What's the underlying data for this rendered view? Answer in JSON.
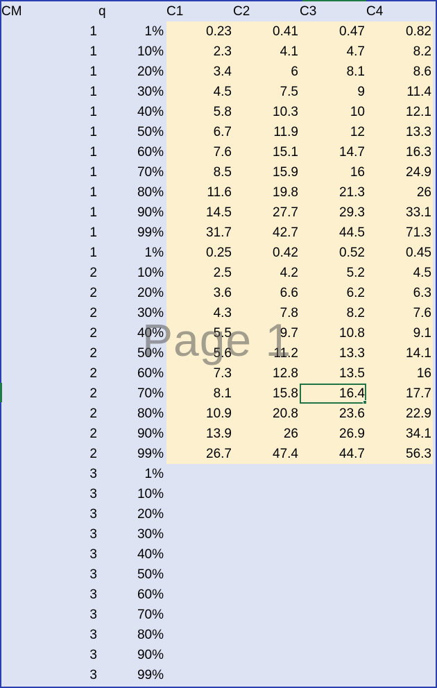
{
  "sheet": {
    "headers": [
      "CM",
      "q",
      "",
      "C1",
      "C2",
      "C3",
      "C4"
    ],
    "watermark": "Page 1",
    "rows": [
      {
        "cm": "1",
        "q": "1%",
        "c1": "0.23",
        "c2": "0.41",
        "c3": "0.47",
        "c4": "0.82",
        "red": true
      },
      {
        "cm": "1",
        "q": "10%",
        "c1": "2.3",
        "c2": "4.1",
        "c3": "4.7",
        "c4": "8.2"
      },
      {
        "cm": "1",
        "q": "20%",
        "c1": "3.4",
        "c2": "6",
        "c3": "8.1",
        "c4": "8.6"
      },
      {
        "cm": "1",
        "q": "30%",
        "c1": "4.5",
        "c2": "7.5",
        "c3": "9",
        "c4": "11.4"
      },
      {
        "cm": "1",
        "q": "40%",
        "c1": "5.8",
        "c2": "10.3",
        "c3": "10",
        "c4": "12.1"
      },
      {
        "cm": "1",
        "q": "50%",
        "c1": "6.7",
        "c2": "11.9",
        "c3": "12",
        "c4": "13.3"
      },
      {
        "cm": "1",
        "q": "60%",
        "c1": "7.6",
        "c2": "15.1",
        "c3": "14.7",
        "c4": "16.3"
      },
      {
        "cm": "1",
        "q": "70%",
        "c1": "8.5",
        "c2": "15.9",
        "c3": "16",
        "c4": "24.9"
      },
      {
        "cm": "1",
        "q": "80%",
        "c1": "11.6",
        "c2": "19.8",
        "c3": "21.3",
        "c4": "26"
      },
      {
        "cm": "1",
        "q": "90%",
        "c1": "14.5",
        "c2": "27.7",
        "c3": "29.3",
        "c4": "33.1"
      },
      {
        "cm": "1",
        "q": "99%",
        "c1": "31.7",
        "c2": "42.7",
        "c3": "44.5",
        "c4": "71.3"
      },
      {
        "cm": "1",
        "q": "1%",
        "c1": "0.25",
        "c2": "0.42",
        "c3": "0.52",
        "c4": "0.45",
        "red": true
      },
      {
        "cm": "2",
        "q": "10%",
        "c1": "2.5",
        "c2": "4.2",
        "c3": "5.2",
        "c4": "4.5"
      },
      {
        "cm": "2",
        "q": "20%",
        "c1": "3.6",
        "c2": "6.6",
        "c3": "6.2",
        "c4": "6.3"
      },
      {
        "cm": "2",
        "q": "30%",
        "c1": "4.3",
        "c2": "7.8",
        "c3": "8.2",
        "c4": "7.6"
      },
      {
        "cm": "2",
        "q": "40%",
        "c1": "5.5",
        "c2": "9.7",
        "c3": "10.8",
        "c4": "9.1"
      },
      {
        "cm": "2",
        "q": "50%",
        "c1": "5.6",
        "c2": "11.2",
        "c3": "13.3",
        "c4": "14.1"
      },
      {
        "cm": "2",
        "q": "60%",
        "c1": "7.3",
        "c2": "12.8",
        "c3": "13.5",
        "c4": "16"
      },
      {
        "cm": "2",
        "q": "70%",
        "c1": "8.1",
        "c2": "15.8",
        "c3": "16.4",
        "c4": "17.7",
        "selected": "c3"
      },
      {
        "cm": "2",
        "q": "80%",
        "c1": "10.9",
        "c2": "20.8",
        "c3": "23.6",
        "c4": "22.9"
      },
      {
        "cm": "2",
        "q": "90%",
        "c1": "13.9",
        "c2": "26",
        "c3": "26.9",
        "c4": "34.1"
      },
      {
        "cm": "2",
        "q": "99%",
        "c1": "26.7",
        "c2": "47.4",
        "c3": "44.7",
        "c4": "56.3"
      },
      {
        "cm": "3",
        "q": "1%"
      },
      {
        "cm": "3",
        "q": "10%"
      },
      {
        "cm": "3",
        "q": "20%"
      },
      {
        "cm": "3",
        "q": "30%"
      },
      {
        "cm": "3",
        "q": "40%"
      },
      {
        "cm": "3",
        "q": "50%"
      },
      {
        "cm": "3",
        "q": "60%"
      },
      {
        "cm": "3",
        "q": "70%"
      },
      {
        "cm": "3",
        "q": "80%"
      },
      {
        "cm": "3",
        "q": "90%"
      },
      {
        "cm": "3",
        "q": "99%"
      }
    ]
  },
  "colors": {
    "shade": "#fdf0cf",
    "red": "#e00000",
    "selection": "#217346",
    "background": "#dde3f3"
  }
}
